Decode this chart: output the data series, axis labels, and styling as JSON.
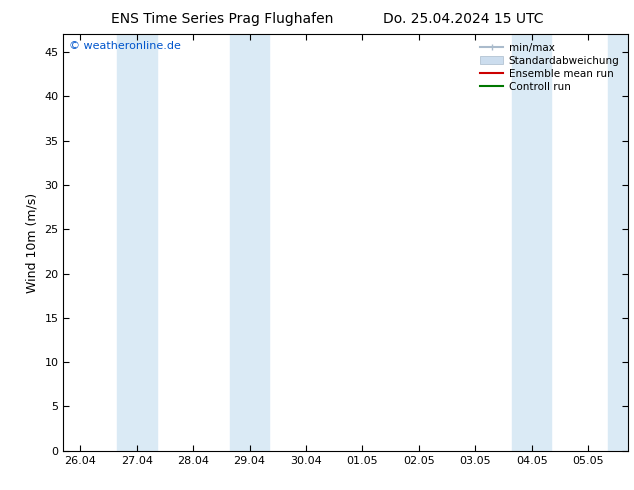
{
  "title_left": "ENS Time Series Prag Flughafen",
  "title_right": "Do. 25.04.2024 15 UTC",
  "ylabel": "Wind 10m (m/s)",
  "ylim": [
    0,
    47
  ],
  "yticks": [
    0,
    5,
    10,
    15,
    20,
    25,
    30,
    35,
    40,
    45
  ],
  "xtick_labels": [
    "26.04",
    "27.04",
    "28.04",
    "29.04",
    "30.04",
    "01.05",
    "02.05",
    "03.05",
    "04.05",
    "05.05"
  ],
  "xtick_positions": [
    0,
    1,
    2,
    3,
    4,
    5,
    6,
    7,
    8,
    9
  ],
  "xlim": [
    -0.3,
    9.7
  ],
  "background_color": "#ffffff",
  "plot_bg_color": "#ffffff",
  "shade_color": "#daeaf5",
  "shade_bands": [
    [
      0.65,
      1.35
    ],
    [
      2.65,
      3.35
    ],
    [
      7.65,
      8.35
    ],
    [
      9.35,
      9.7
    ]
  ],
  "watermark": "© weatheronline.de",
  "watermark_color": "#0055cc",
  "legend_entries": [
    {
      "label": "min/max",
      "color": "#aabbcc",
      "lw": 1.5
    },
    {
      "label": "Standardabweichung",
      "color": "#bbccdd",
      "lw": 6
    },
    {
      "label": "Ensemble mean run",
      "color": "#cc0000",
      "lw": 1.5
    },
    {
      "label": "Controll run",
      "color": "#007700",
      "lw": 1.5
    }
  ],
  "title_fontsize": 10,
  "ylabel_fontsize": 9,
  "tick_fontsize": 8,
  "legend_fontsize": 7.5
}
